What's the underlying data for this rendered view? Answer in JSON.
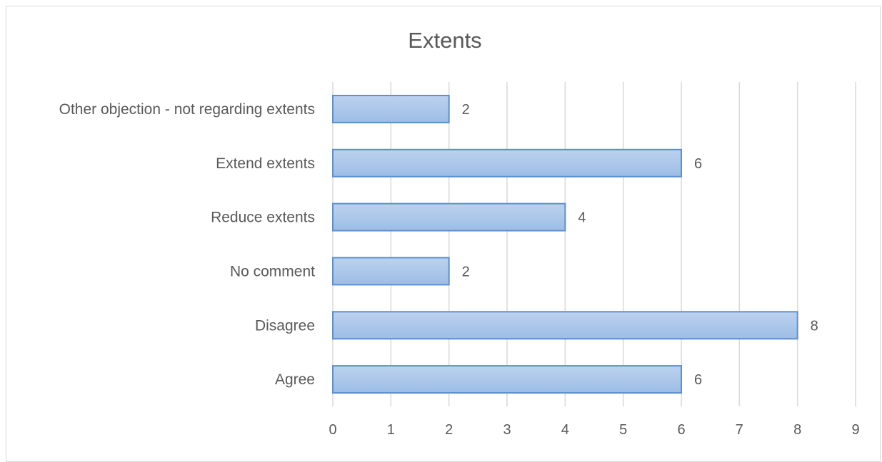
{
  "chart_data": {
    "type": "bar",
    "orientation": "horizontal",
    "title": "Extents",
    "categories": [
      "Agree",
      "Disagree",
      "No comment",
      "Reduce extents",
      "Extend extents",
      "Other objection - not regarding extents"
    ],
    "values": [
      6,
      8,
      2,
      4,
      6,
      2
    ],
    "xlabel": "",
    "ylabel": "",
    "xlim": [
      0,
      9
    ],
    "x_ticks": [
      "0",
      "1",
      "2",
      "3",
      "4",
      "5",
      "6",
      "7",
      "8",
      "9"
    ],
    "grid": "vertical",
    "legend": "none",
    "data_labels": true,
    "colors": {
      "bar_fill_top": "#bcd2ee",
      "bar_fill_bottom": "#9dbde6",
      "bar_border": "#5b8fd0",
      "text": "#595959",
      "gridline": "#d9d9d9"
    }
  }
}
